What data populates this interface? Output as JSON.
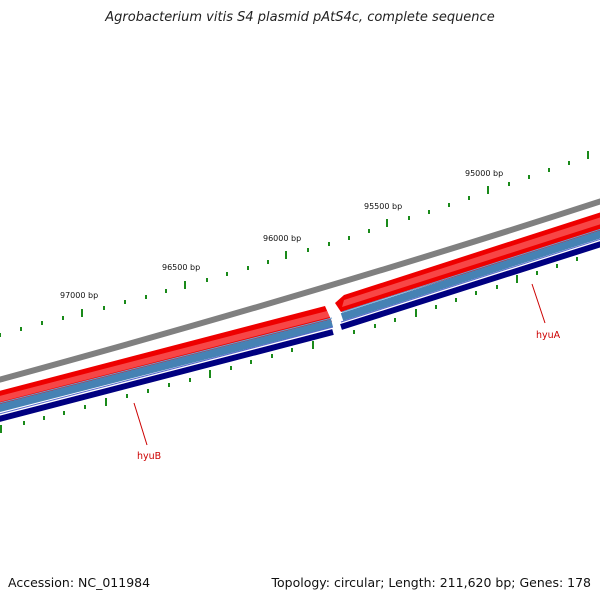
{
  "title": "Agrobacterium vitis S4 plasmid pAtS4c, complete sequence",
  "footer": {
    "accession": "Accession: NC_011984",
    "summary": "Topology: circular; Length: 211,620 bp; Genes: 178"
  },
  "scale_labels": [
    "95000 bp",
    "95500 bp",
    "96000 bp",
    "96500 bp",
    "97000 bp"
  ],
  "genes": [
    {
      "name": "hyuA",
      "strand": "forward"
    },
    {
      "name": "hyuB",
      "strand": "forward"
    }
  ],
  "colors": {
    "backbone": "#808080",
    "cds_forward": "#ee0000",
    "cds_forward_light": "#ff8080",
    "track_steelblue": "#4682b4",
    "track_navy": "#000080",
    "tick_green": "#1a8a1a",
    "gene_label": "#cc0000"
  }
}
